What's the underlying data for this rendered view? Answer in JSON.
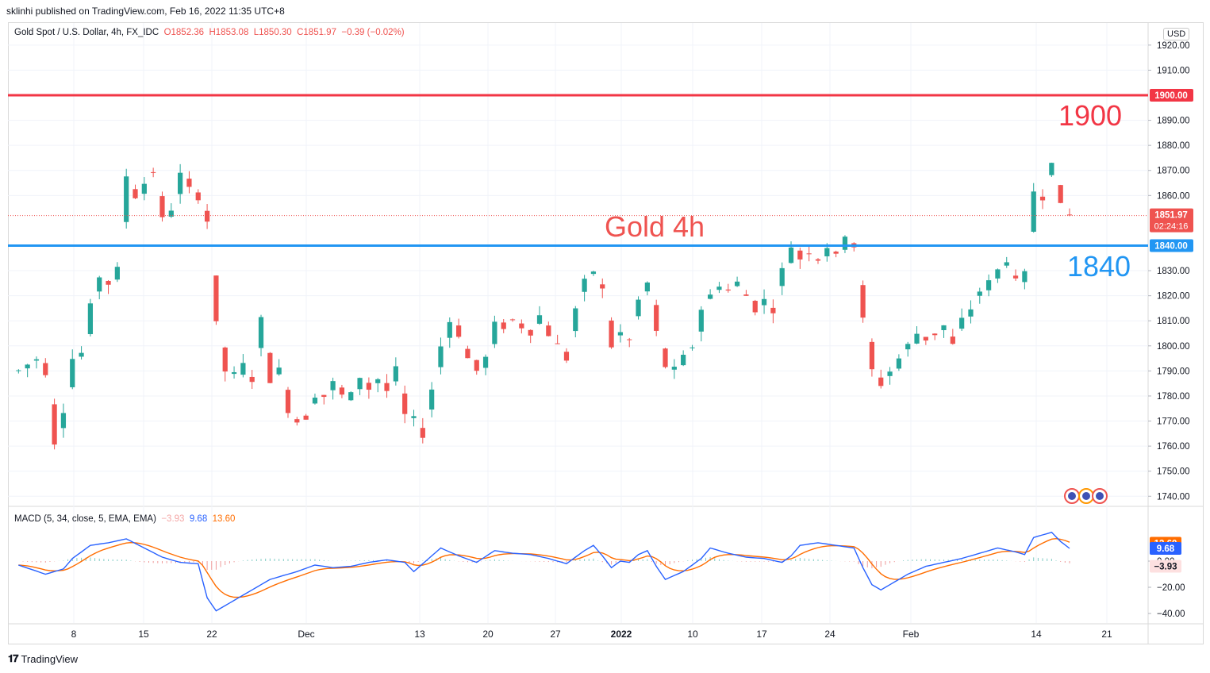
{
  "header": {
    "published": "sklinhi published on TradingView.com, Feb 16, 2022 11:35 UTC+8"
  },
  "symbol": {
    "name": "Gold Spot / U.S. Dollar, 4h, FX_IDC",
    "open": "O1852.36",
    "high": "H1853.08",
    "low": "L1850.30",
    "close": "C1851.97",
    "change": "−0.39 (−0.02%)"
  },
  "currency_label": "USD",
  "annotations": {
    "gold_4h": "Gold 4h",
    "level_1900": "1900",
    "level_1840": "1840"
  },
  "price_axis": {
    "ticks": [
      "1920.00",
      "1910.00",
      "1890.00",
      "1880.00",
      "1870.00",
      "1860.00",
      "1830.00",
      "1820.00",
      "1810.00",
      "1800.00",
      "1790.00",
      "1780.00",
      "1770.00",
      "1760.00",
      "1750.00",
      "1740.00"
    ],
    "tag_1900": "1900.00",
    "tag_1840": "1840.00",
    "last_price": "1851.97",
    "countdown": "02:24:16"
  },
  "macd": {
    "label": "MACD (5, 34, close, 5, EMA, EMA)",
    "histogram_value": "−3.93",
    "macd_value": "9.68",
    "signal_value": "13.60",
    "ticks": [
      "0.00",
      "−20.00",
      "−40.00"
    ]
  },
  "time_axis": [
    "8",
    "15",
    "22",
    "Dec",
    "13",
    "20",
    "27",
    "2022",
    "10",
    "17",
    "24",
    "Feb",
    "14",
    "21"
  ],
  "footer": {
    "brand": "TradingView"
  },
  "colors": {
    "up": "#26a69a",
    "down": "#ef5350",
    "line_1900": "#f23645",
    "line_1840": "#2196f3",
    "macd_line": "#2962ff",
    "signal_line": "#ff6d00"
  },
  "chart_data": {
    "type": "candlestick",
    "title": "Gold Spot / U.S. Dollar, 4h, FX_IDC",
    "ylim": [
      1735,
      1928
    ],
    "horizontal_levels": [
      1900,
      1840
    ],
    "last_price": 1851.97,
    "price_path": [
      [
        1,
        1790
      ],
      [
        3,
        1795
      ],
      [
        4,
        1790
      ],
      [
        5,
        1762
      ],
      [
        6,
        1775
      ],
      [
        7,
        1795
      ],
      [
        8,
        1797
      ],
      [
        9,
        1815
      ],
      [
        10,
        1828
      ],
      [
        11,
        1825
      ],
      [
        12,
        1830
      ],
      [
        13,
        1868
      ],
      [
        14,
        1860
      ],
      [
        15,
        1865
      ],
      [
        16,
        1870
      ],
      [
        17,
        1850
      ],
      [
        18,
        1855
      ],
      [
        19,
        1868
      ],
      [
        20,
        1862
      ],
      [
        21,
        1860
      ],
      [
        22,
        1850
      ],
      [
        23,
        1808
      ],
      [
        24,
        1790
      ],
      [
        25,
        1788
      ],
      [
        26,
        1792
      ],
      [
        27,
        1787
      ],
      [
        28,
        1810
      ],
      [
        29,
        1787
      ],
      [
        30,
        1790
      ],
      [
        31,
        1775
      ],
      [
        32,
        1770
      ],
      [
        33,
        1772
      ],
      [
        34,
        1781
      ],
      [
        35,
        1780
      ],
      [
        36,
        1785
      ],
      [
        37,
        1780
      ],
      [
        38,
        1780
      ],
      [
        39,
        1788
      ],
      [
        40,
        1783
      ],
      [
        41,
        1787
      ],
      [
        42,
        1782
      ],
      [
        43,
        1790
      ],
      [
        44,
        1772
      ],
      [
        45,
        1770
      ],
      [
        46,
        1765
      ],
      [
        47,
        1783
      ],
      [
        48,
        1800
      ],
      [
        49,
        1810
      ],
      [
        50,
        1805
      ],
      [
        51,
        1795
      ],
      [
        52,
        1790
      ],
      [
        53,
        1795
      ],
      [
        54,
        1808
      ],
      [
        55,
        1808
      ],
      [
        56,
        1810
      ],
      [
        57,
        1808
      ],
      [
        58,
        1806
      ],
      [
        59,
        1812
      ],
      [
        60,
        1805
      ],
      [
        61,
        1800
      ],
      [
        62,
        1795
      ],
      [
        63,
        1815
      ],
      [
        64,
        1825
      ],
      [
        65,
        1830
      ],
      [
        66,
        1822
      ],
      [
        67,
        1800
      ],
      [
        68,
        1805
      ],
      [
        69,
        1802
      ],
      [
        70,
        1818
      ],
      [
        71,
        1825
      ],
      [
        72,
        1805
      ],
      [
        73,
        1792
      ],
      [
        74,
        1790
      ],
      [
        75,
        1795
      ],
      [
        76,
        1800
      ],
      [
        77,
        1815
      ],
      [
        78,
        1820
      ],
      [
        79,
        1825
      ],
      [
        80,
        1822
      ],
      [
        81,
        1825
      ],
      [
        82,
        1820
      ],
      [
        83,
        1815
      ],
      [
        84,
        1818
      ],
      [
        85,
        1815
      ],
      [
        86,
        1830
      ],
      [
        87,
        1840
      ],
      [
        88,
        1835
      ],
      [
        89,
        1838
      ],
      [
        90,
        1835
      ],
      [
        91,
        1840
      ],
      [
        92,
        1835
      ],
      [
        93,
        1845
      ],
      [
        94,
        1840
      ],
      [
        95,
        1810
      ],
      [
        96,
        1790
      ],
      [
        97,
        1785
      ],
      [
        98,
        1790
      ],
      [
        99,
        1795
      ],
      [
        100,
        1800
      ],
      [
        101,
        1805
      ],
      [
        102,
        1803
      ],
      [
        103,
        1805
      ],
      [
        104,
        1808
      ],
      [
        105,
        1800
      ],
      [
        106,
        1810
      ],
      [
        107,
        1815
      ],
      [
        108,
        1822
      ],
      [
        109,
        1825
      ],
      [
        110,
        1830
      ],
      [
        111,
        1835
      ],
      [
        112,
        1825
      ],
      [
        113,
        1828
      ],
      [
        114,
        1862
      ],
      [
        115,
        1860
      ],
      [
        116,
        1875
      ],
      [
        117,
        1855
      ],
      [
        118,
        1851.97
      ]
    ],
    "macd_path": [
      [
        1,
        -3
      ],
      [
        4,
        -10
      ],
      [
        6,
        -6
      ],
      [
        7,
        2
      ],
      [
        9,
        12
      ],
      [
        11,
        14
      ],
      [
        13,
        17
      ],
      [
        15,
        10
      ],
      [
        17,
        3
      ],
      [
        19,
        -1
      ],
      [
        21,
        -2
      ],
      [
        22,
        -28
      ],
      [
        23,
        -38
      ],
      [
        25,
        -30
      ],
      [
        27,
        -22
      ],
      [
        29,
        -14
      ],
      [
        31,
        -10
      ],
      [
        32,
        -8
      ],
      [
        34,
        -3
      ],
      [
        36,
        -5
      ],
      [
        38,
        -4
      ],
      [
        40,
        -1
      ],
      [
        42,
        1
      ],
      [
        44,
        -1
      ],
      [
        45,
        -8
      ],
      [
        46,
        -2
      ],
      [
        48,
        10
      ],
      [
        50,
        4
      ],
      [
        52,
        -1
      ],
      [
        54,
        8
      ],
      [
        56,
        6
      ],
      [
        58,
        5
      ],
      [
        60,
        2
      ],
      [
        62,
        -2
      ],
      [
        64,
        8
      ],
      [
        65,
        12
      ],
      [
        66,
        4
      ],
      [
        67,
        -5
      ],
      [
        68,
        0
      ],
      [
        69,
        -1
      ],
      [
        70,
        5
      ],
      [
        71,
        8
      ],
      [
        72,
        -4
      ],
      [
        73,
        -14
      ],
      [
        75,
        -8
      ],
      [
        77,
        2
      ],
      [
        78,
        10
      ],
      [
        80,
        6
      ],
      [
        82,
        3
      ],
      [
        84,
        2
      ],
      [
        86,
        -1
      ],
      [
        87,
        4
      ],
      [
        88,
        12
      ],
      [
        90,
        14
      ],
      [
        92,
        12
      ],
      [
        94,
        10
      ],
      [
        95,
        -5
      ],
      [
        96,
        -18
      ],
      [
        97,
        -22
      ],
      [
        98,
        -18
      ],
      [
        100,
        -10
      ],
      [
        102,
        -4
      ],
      [
        104,
        -1
      ],
      [
        106,
        2
      ],
      [
        108,
        6
      ],
      [
        110,
        10
      ],
      [
        112,
        7
      ],
      [
        113,
        5
      ],
      [
        114,
        18
      ],
      [
        116,
        22
      ],
      [
        117,
        15
      ],
      [
        118,
        9.68
      ]
    ],
    "macd_values": {
      "histogram": -3.93,
      "macd": 9.68,
      "signal": 13.6
    }
  }
}
